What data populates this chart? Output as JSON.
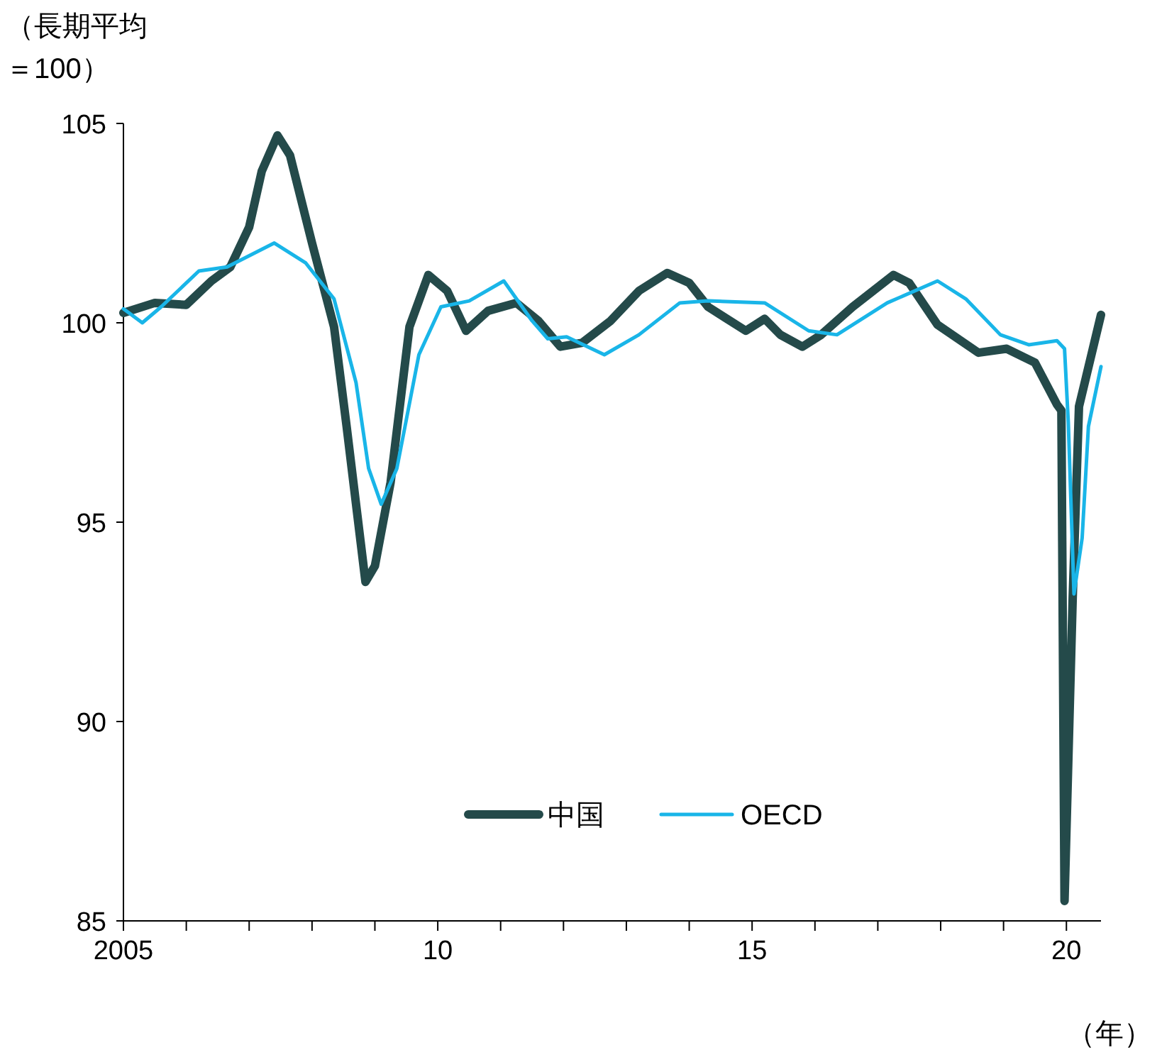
{
  "chart_data": {
    "type": "line",
    "ylabel": "（長期平均＝100）",
    "xlabel": "（年）",
    "xlim": [
      2005,
      2020.55
    ],
    "ylim": [
      85,
      105
    ],
    "xticks": [
      {
        "value": 2005,
        "label": "2005"
      },
      {
        "value": 2006,
        "label": null
      },
      {
        "value": 2007,
        "label": null
      },
      {
        "value": 2008,
        "label": null
      },
      {
        "value": 2009,
        "label": null
      },
      {
        "value": 2010,
        "label": "10"
      },
      {
        "value": 2011,
        "label": null
      },
      {
        "value": 2012,
        "label": null
      },
      {
        "value": 2013,
        "label": null
      },
      {
        "value": 2014,
        "label": null
      },
      {
        "value": 2015,
        "label": "15"
      },
      {
        "value": 2016,
        "label": null
      },
      {
        "value": 2017,
        "label": null
      },
      {
        "value": 2018,
        "label": null
      },
      {
        "value": 2019,
        "label": null
      },
      {
        "value": 2020,
        "label": "20"
      }
    ],
    "yticks": [
      85,
      90,
      95,
      100,
      105
    ],
    "grid": false,
    "legend": "bottom",
    "marker": "none",
    "line_style": "solid",
    "series": [
      {
        "name": "中国",
        "color": "#244a4a",
        "x": [
          2005.0,
          2005.5,
          2006.0,
          2006.4,
          2006.7,
          2007.0,
          2007.2,
          2007.45,
          2007.65,
          2008.0,
          2008.35,
          2008.55,
          2008.85,
          2009.0,
          2009.25,
          2009.55,
          2009.85,
          2010.15,
          2010.45,
          2010.8,
          2011.25,
          2011.6,
          2011.95,
          2012.3,
          2012.75,
          2013.2,
          2013.65,
          2014.0,
          2014.3,
          2014.9,
          2015.2,
          2015.45,
          2015.8,
          2016.1,
          2016.6,
          2017.25,
          2017.5,
          2017.95,
          2018.6,
          2019.05,
          2019.5,
          2019.85,
          2019.92,
          2019.97,
          2020.1,
          2020.2,
          2020.55
        ],
        "values": [
          100.25,
          100.5,
          100.45,
          101.05,
          101.4,
          102.4,
          103.8,
          104.7,
          104.2,
          102.0,
          99.9,
          97.4,
          93.5,
          93.9,
          96.0,
          99.9,
          101.2,
          100.8,
          99.8,
          100.3,
          100.5,
          100.05,
          99.4,
          99.5,
          100.05,
          100.8,
          101.25,
          101.0,
          100.4,
          99.8,
          100.1,
          99.7,
          99.4,
          99.7,
          100.4,
          101.2,
          101.0,
          99.95,
          99.25,
          99.35,
          99.0,
          97.95,
          97.8,
          85.5,
          93.1,
          97.9,
          100.2
        ]
      },
      {
        "name": "OECD",
        "color": "#19b5e8",
        "x": [
          2005.0,
          2005.3,
          2005.6,
          2006.2,
          2006.65,
          2007.4,
          2007.9,
          2008.35,
          2008.7,
          2008.9,
          2009.1,
          2009.35,
          2009.7,
          2010.05,
          2010.5,
          2011.05,
          2011.5,
          2011.75,
          2012.05,
          2012.65,
          2013.2,
          2013.85,
          2014.3,
          2015.2,
          2015.9,
          2016.35,
          2017.15,
          2017.95,
          2018.4,
          2018.95,
          2019.4,
          2019.85,
          2019.97,
          2020.03,
          2020.12,
          2020.25,
          2020.35,
          2020.55
        ],
        "values": [
          100.35,
          100.0,
          100.4,
          101.3,
          101.4,
          102.0,
          101.5,
          100.6,
          98.5,
          96.35,
          95.45,
          96.35,
          99.2,
          100.4,
          100.55,
          101.05,
          100.05,
          99.6,
          99.65,
          99.2,
          99.7,
          100.5,
          100.55,
          100.5,
          99.8,
          99.7,
          100.5,
          101.05,
          100.6,
          99.7,
          99.45,
          99.55,
          99.35,
          97.5,
          93.2,
          94.6,
          97.4,
          98.9
        ]
      }
    ]
  }
}
